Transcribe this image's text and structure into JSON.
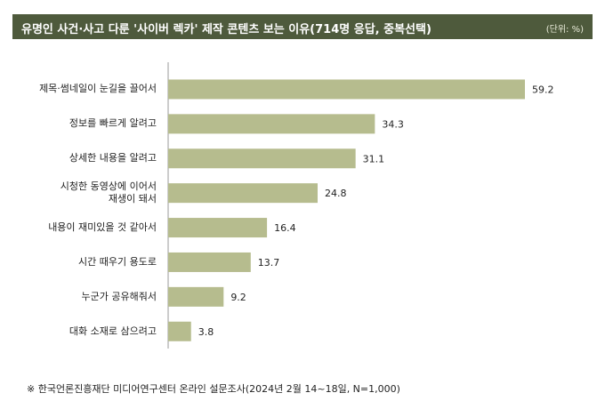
{
  "title": "유명인 사건·사고 다룬 '사이버 렉카' 제작 콘텐츠 보는 이유(714명 응답, 중복선택)",
  "unit": "(단위: %)",
  "chart_data": {
    "type": "bar",
    "orientation": "horizontal",
    "categories": [
      "제목·썸네일이 눈길을 끌어서",
      "정보를 빠르게 알려고",
      "상세한 내용을 알려고",
      "시청한 동영상에 이어서\n재생이 돼서",
      "내용이 재미있을 것 같아서",
      "시간 때우기 용도로",
      "누군가 공유해줘서",
      "대화 소재로 삼으려고"
    ],
    "values": [
      59.2,
      34.3,
      31.1,
      24.8,
      16.4,
      13.7,
      9.2,
      3.8
    ],
    "color": "#b6bc8e"
  },
  "footnote": "※ 한국언론진흥재단 미디어연구센터 온라인 설문조사(2024년 2월 14~18일, N=1,000)"
}
